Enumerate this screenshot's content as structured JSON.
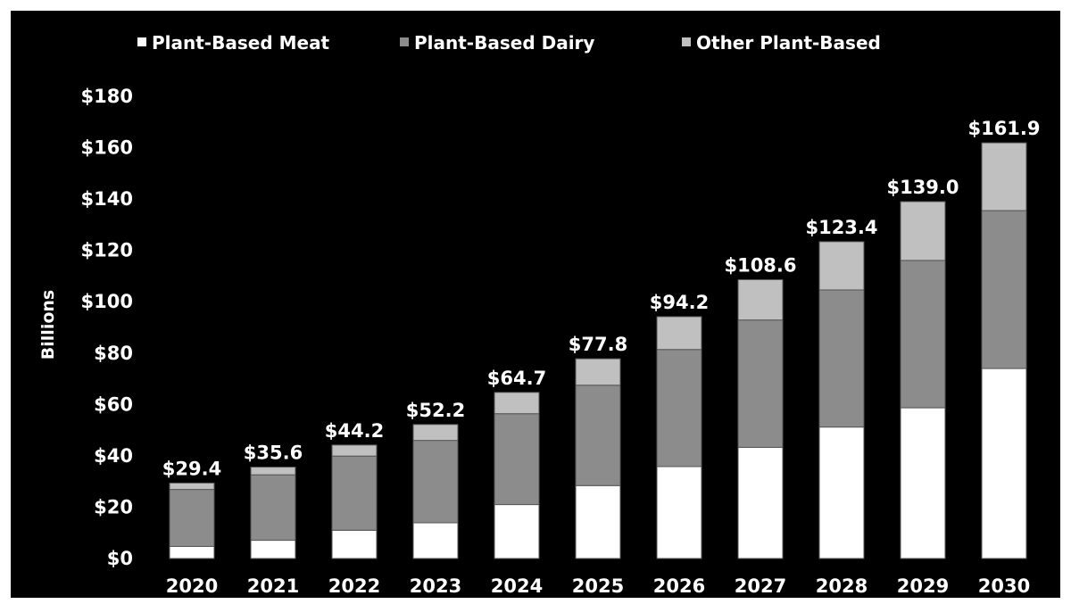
{
  "chart_data": {
    "type": "bar",
    "stacked": true,
    "title": "",
    "xlabel": "",
    "ylabel": "Billions",
    "ylim": [
      0,
      180
    ],
    "yticks": [
      0,
      20,
      40,
      60,
      80,
      100,
      120,
      140,
      160,
      180
    ],
    "ytick_labels": [
      "$0",
      "$20",
      "$40",
      "$60",
      "$80",
      "$100",
      "$120",
      "$140",
      "$160",
      "$180"
    ],
    "categories": [
      "2020",
      "2021",
      "2022",
      "2023",
      "2024",
      "2025",
      "2026",
      "2027",
      "2028",
      "2029",
      "2030"
    ],
    "series": [
      {
        "name": "Plant-Based Meat",
        "color": "#ffffff",
        "values": [
          4.7,
          7.1,
          11.0,
          13.9,
          21.0,
          28.4,
          35.8,
          43.3,
          51.2,
          58.7,
          74.0
        ]
      },
      {
        "name": "Plant-Based Dairy",
        "color": "#8c8c8c",
        "values": [
          22.2,
          25.5,
          28.9,
          32.1,
          35.4,
          39.1,
          45.6,
          49.6,
          53.4,
          57.4,
          61.5
        ]
      },
      {
        "name": "Other Plant-Based",
        "color": "#c0c0c0",
        "values": [
          2.5,
          3.0,
          4.3,
          6.2,
          8.3,
          10.3,
          12.8,
          15.7,
          18.8,
          22.9,
          26.4
        ]
      }
    ],
    "totals": [
      "$29.4",
      "$35.6",
      "$44.2",
      "$52.2",
      "$64.7",
      "$77.8",
      "$94.2",
      "$108.6",
      "$123.4",
      "$139.0",
      "$161.9"
    ],
    "legend_position": "top",
    "grid": false,
    "background": "#000000"
  }
}
